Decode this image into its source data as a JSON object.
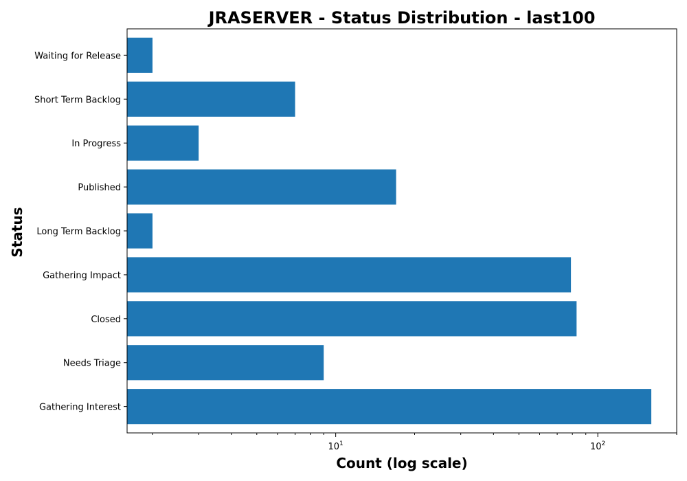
{
  "chart_data": {
    "type": "bar",
    "orientation": "horizontal",
    "title": "JRASERVER - Status Distribution - last100",
    "xlabel": "Count (log scale)",
    "ylabel": "Status",
    "xscale": "log",
    "xlim": [
      1.6,
      200
    ],
    "categories": [
      "Gathering Interest",
      "Needs Triage",
      "Closed",
      "Gathering Impact",
      "Long Term Backlog",
      "Published",
      "In Progress",
      "Short Term Backlog",
      "Waiting for Release"
    ],
    "values": [
      160,
      9,
      83,
      79,
      2,
      17,
      3,
      7,
      2
    ],
    "bar_color": "#1f77b4",
    "grid": false,
    "legend": "none"
  }
}
